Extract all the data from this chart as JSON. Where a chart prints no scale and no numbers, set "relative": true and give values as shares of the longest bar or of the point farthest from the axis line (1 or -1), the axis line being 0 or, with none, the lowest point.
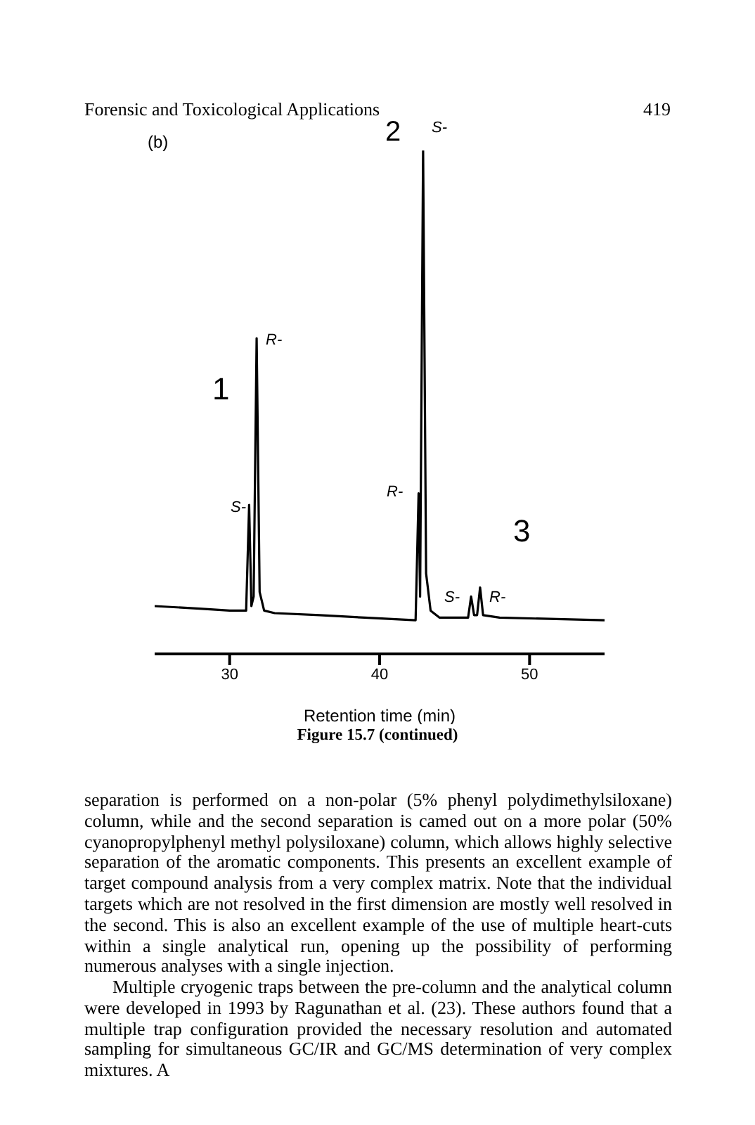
{
  "chart_data": {
    "type": "line",
    "relative": true,
    "xlabel": "Retention time (min)",
    "xlim": [
      25,
      55
    ],
    "xticks": [
      30,
      40,
      50
    ],
    "marker": "none",
    "x": [
      25,
      28,
      30,
      31.1,
      31.3,
      31.45,
      31.6,
      31.8,
      32.0,
      32.3,
      33,
      36,
      39,
      42.4,
      42.6,
      42.7,
      42.9,
      43.1,
      43.4,
      44,
      45.9,
      46.1,
      46.3,
      46.5,
      46.7,
      46.9,
      48,
      55
    ],
    "series": [
      {
        "color": "#000000",
        "values": [
          0.095,
          0.09,
          0.086,
          0.086,
          0.296,
          0.095,
          0.114,
          0.627,
          0.123,
          0.086,
          0.081,
          0.077,
          0.072,
          0.067,
          0.319,
          0.114,
          1,
          0.16,
          0.086,
          0.072,
          0.072,
          0.114,
          0.077,
          0.077,
          0.132,
          0.077,
          0.072,
          0.067
        ]
      }
    ],
    "annotations": [
      "Forensic and Toxicological Applications",
      "419",
      "(b)",
      "Figure 15.7 (continued)",
      "separation is performed on a non-polar (5% phenyl polydimethylsiloxane) column, while and the second separation is camed out on a more polar (50% cyanopropylphenyl methyl polysiloxane) column, which allows highly selective separation of the aromatic components. This presents an excellent example of target compound analysis from a very complex matrix. Note that the individual targets which are not resolved in the first dimension are mostly well resolved in the second. This is also an excellent example of the use of multiple heart-cuts within a single analytical run, opening up the possibility of performing numerous analyses with a single injection.",
      "Multiple cryogenic traps between the pre-column and the analytical column were developed in 1993 by Ragunathan et al. (23). These authors found that a multiple trap configuration provided the necessary resolution and automated sampling for simultaneous GC/IR and GC/MS determination of very complex mixtures. A",
      "2",
      "S-",
      "R-",
      "1",
      "S-",
      "R-",
      "3",
      "S-",
      "R-"
    ]
  }
}
